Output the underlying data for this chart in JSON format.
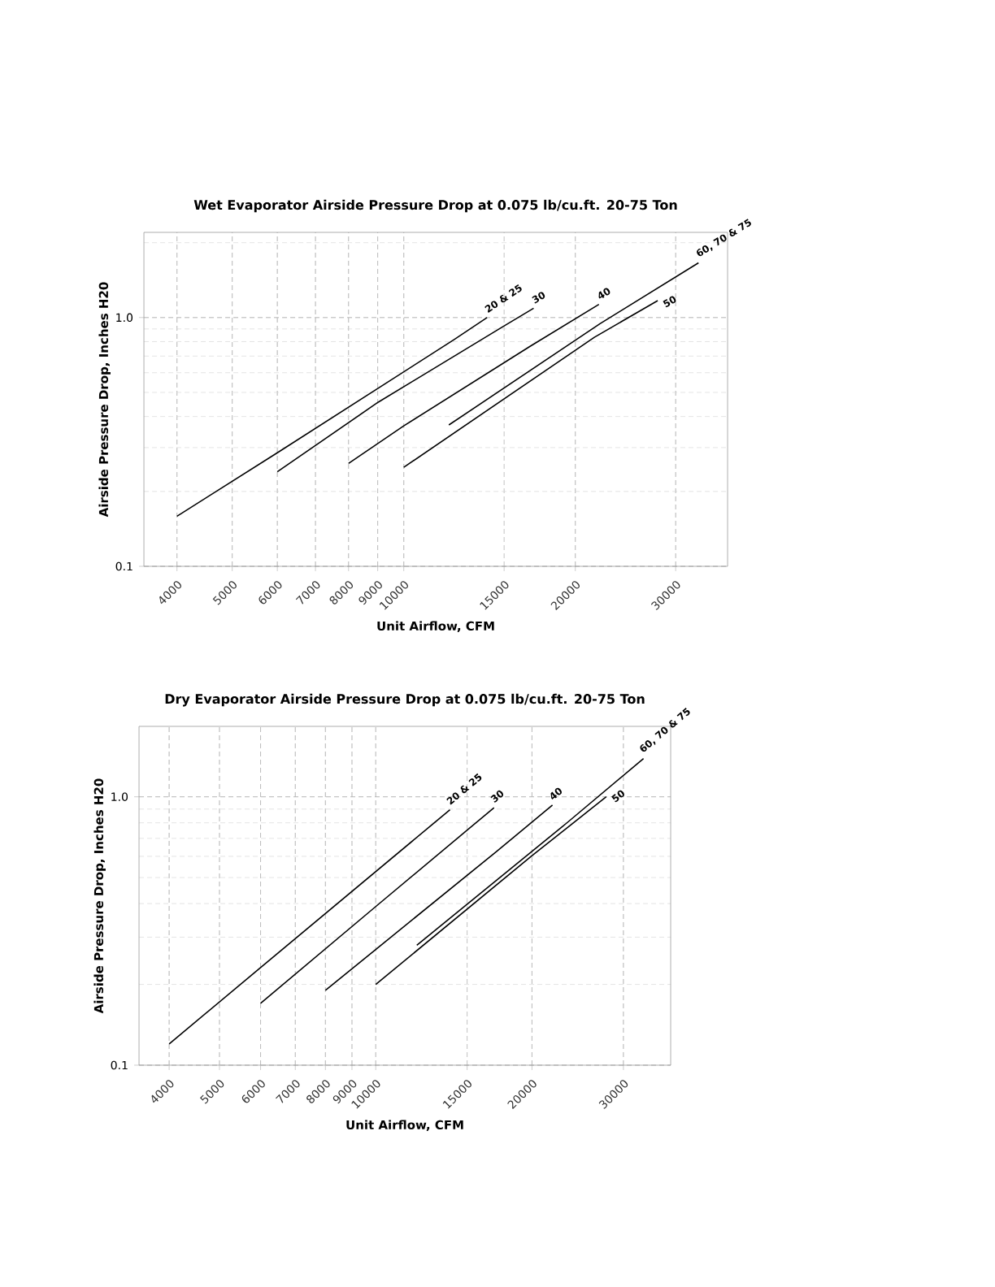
{
  "chart_data": [
    {
      "type": "line",
      "title": "Wet Evaporator Airside Pressure Drop at 0.075 lb/cu.ft. 20-75 Ton",
      "xlabel": "Unit Airflow, CFM",
      "ylabel": "Airside Pressure Drop, Inches H20",
      "log": "xy",
      "grid": true,
      "xlim": [
        3500,
        37000
      ],
      "ylim": [
        0.1,
        2.2
      ],
      "xticks": [
        4000,
        5000,
        6000,
        7000,
        8000,
        9000,
        10000,
        15000,
        20000,
        30000
      ],
      "yticks": [
        0.1,
        {
          "value": 1,
          "label": "1.0"
        }
      ],
      "series": [
        {
          "name": "20 & 25",
          "color": "#000000",
          "x": [
            4000,
            6000,
            12260,
            14000
          ],
          "values": [
            0.159,
            0.286,
            0.816,
            1.0
          ]
        },
        {
          "name": "30",
          "color": "#000000",
          "x": [
            6000,
            9020,
            14960,
            16900
          ],
          "values": [
            0.24,
            0.457,
            0.922,
            1.09
          ]
        },
        {
          "name": "40",
          "color": "#000000",
          "x": [
            8000,
            10000,
            16660,
            22000
          ],
          "values": [
            0.259,
            0.367,
            0.766,
            1.13
          ]
        },
        {
          "name": "50",
          "color": "#000000",
          "x": [
            10000,
            21600,
            27900
          ],
          "values": [
            0.25,
            0.833,
            1.17
          ]
        },
        {
          "name": "60, 70 & 75",
          "color": "#000000",
          "x": [
            12000,
            22100,
            32900
          ],
          "values": [
            0.37,
            0.945,
            1.66
          ]
        }
      ]
    },
    {
      "type": "line",
      "title": "Dry Evaporator Airside Pressure Drop at 0.075 lb/cu.ft. 20-75 Ton",
      "xlabel": "Unit Airflow, CFM",
      "ylabel": "Airside Pressure Drop, Inches H20",
      "log": "xy",
      "grid": true,
      "xlim": [
        3500,
        37000
      ],
      "ylim": [
        0.1,
        1.83
      ],
      "xticks": [
        4000,
        5000,
        6000,
        7000,
        8000,
        9000,
        10000,
        15000,
        20000,
        30000
      ],
      "yticks": [
        0.1,
        {
          "value": 1,
          "label": "1.0"
        }
      ],
      "series": [
        {
          "name": "20 & 25",
          "color": "#000000",
          "x": [
            4000,
            6000,
            13900
          ],
          "values": [
            0.12,
            0.231,
            0.895
          ]
        },
        {
          "name": "30",
          "color": "#000000",
          "x": [
            6000,
            10000,
            16900
          ],
          "values": [
            0.17,
            0.39,
            0.911
          ]
        },
        {
          "name": "40",
          "color": "#000000",
          "x": [
            8000,
            10000,
            17100,
            21900
          ],
          "values": [
            0.19,
            0.27,
            0.626,
            0.931
          ]
        },
        {
          "name": "50",
          "color": "#000000",
          "x": [
            10000,
            20000,
            27800
          ],
          "values": [
            0.2,
            0.603,
            1.0
          ]
        },
        {
          "name": "60, 70 & 75",
          "color": "#000000",
          "x": [
            12000,
            23300,
            32800
          ],
          "values": [
            0.28,
            0.797,
            1.389
          ]
        }
      ]
    }
  ]
}
